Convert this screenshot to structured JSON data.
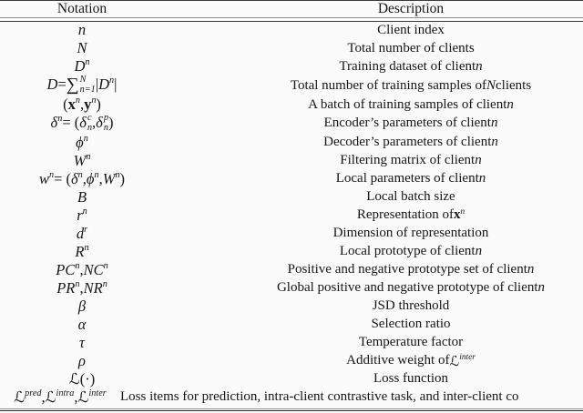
{
  "table": {
    "headers": {
      "notation": "Notation",
      "description": "Description"
    },
    "rows": [
      {
        "notation": "*n*",
        "description": "Client index"
      },
      {
        "notation": "*N*",
        "description": "Total number of clients"
      },
      {
        "notation": "*D*_{n}",
        "description": "Training dataset of client *n*"
      },
      {
        "notation": "*D* = ∑^{N}_{n=1} |*D*_{n}|",
        "description": "Total number of training samples of *N* clients"
      },
      {
        "notation": "(**x**_{n}, **y**_{n})",
        "description": "A batch of training samples of client *n*"
      },
      {
        "notation": "*δ*_{n} = (*δ*^{c}_{n}, *δ*^{p}_{n})",
        "description": "Encoder’s parameters of client *n*"
      },
      {
        "notation": "*ϕ*_{n}",
        "description": "Decoder’s parameters of client *n*"
      },
      {
        "notation": "*W*_{n}",
        "description": "Filtering matrix of client *n*"
      },
      {
        "notation": "*w*_{n} = (*δ*_{n}, *ϕ*_{n}, *W*_{n})",
        "description": "Local parameters of client *n*"
      },
      {
        "notation": "*B*",
        "description": "Local batch size"
      },
      {
        "notation": "*r*_{n}",
        "description": "Representation of **x**_{n}"
      },
      {
        "notation": "*d*_{r}",
        "description": "Dimension of representation"
      },
      {
        "notation": "*R*_{n}",
        "description": "Local prototype of client *n*"
      },
      {
        "notation": "*PC*_{n}, *NC*_{n}",
        "description": "Positive and negative prototype set of client *n*"
      },
      {
        "notation": "*PR*_{n}, *NR*_{n}",
        "description": "Global positive and negative prototype of client *n*"
      },
      {
        "notation": "*β*",
        "description": "JSD threshold"
      },
      {
        "notation": "*α*",
        "description": "Selection ratio"
      },
      {
        "notation": "*τ*",
        "description": "Temperature factor"
      },
      {
        "notation": "*ρ*",
        "description": "Additive weight of ℒ_{inter}"
      },
      {
        "notation": "ℒ(·)",
        "description": "Loss function"
      },
      {
        "notation": "ℒ_{pred}, ℒ_{intra}, ℒ_{inter}",
        "description": "Loss items for prediction, intra-client contrastive task, and inter-client co"
      }
    ]
  },
  "colors": {
    "background": "#fbfbfb",
    "text": "#161616",
    "rule_dark": "#3b3b3b",
    "rule_light": "#8f8f8f"
  }
}
